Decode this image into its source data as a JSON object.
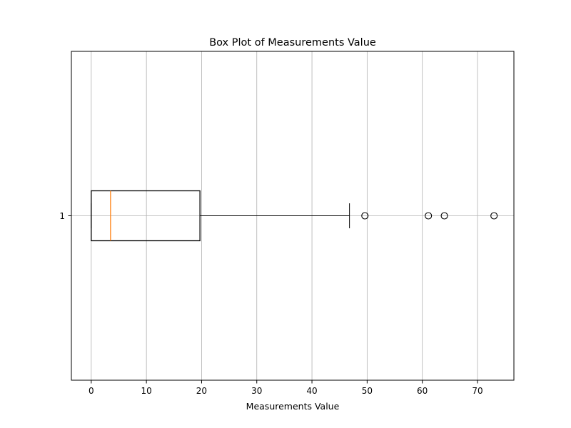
{
  "chart_data": {
    "type": "box",
    "orientation": "horizontal",
    "title": "Box Plot of Measurements Value",
    "xlabel": "Measurements Value",
    "ylabel": "",
    "xlim": [
      -3.6,
      76.6
    ],
    "x_ticks": [
      0,
      10,
      20,
      30,
      40,
      50,
      60,
      70
    ],
    "grid": true,
    "categories": [
      "1"
    ],
    "series": [
      {
        "whisker_low": 0,
        "q1": 0,
        "median": 3.5,
        "q3": 19.7,
        "whisker_high": 46.8,
        "outliers": [
          49.6,
          61.1,
          64.0,
          73.0
        ]
      }
    ],
    "colors": {
      "box": "#000000",
      "median": "#ff7f0e",
      "grid": "#b0b0b0"
    }
  }
}
